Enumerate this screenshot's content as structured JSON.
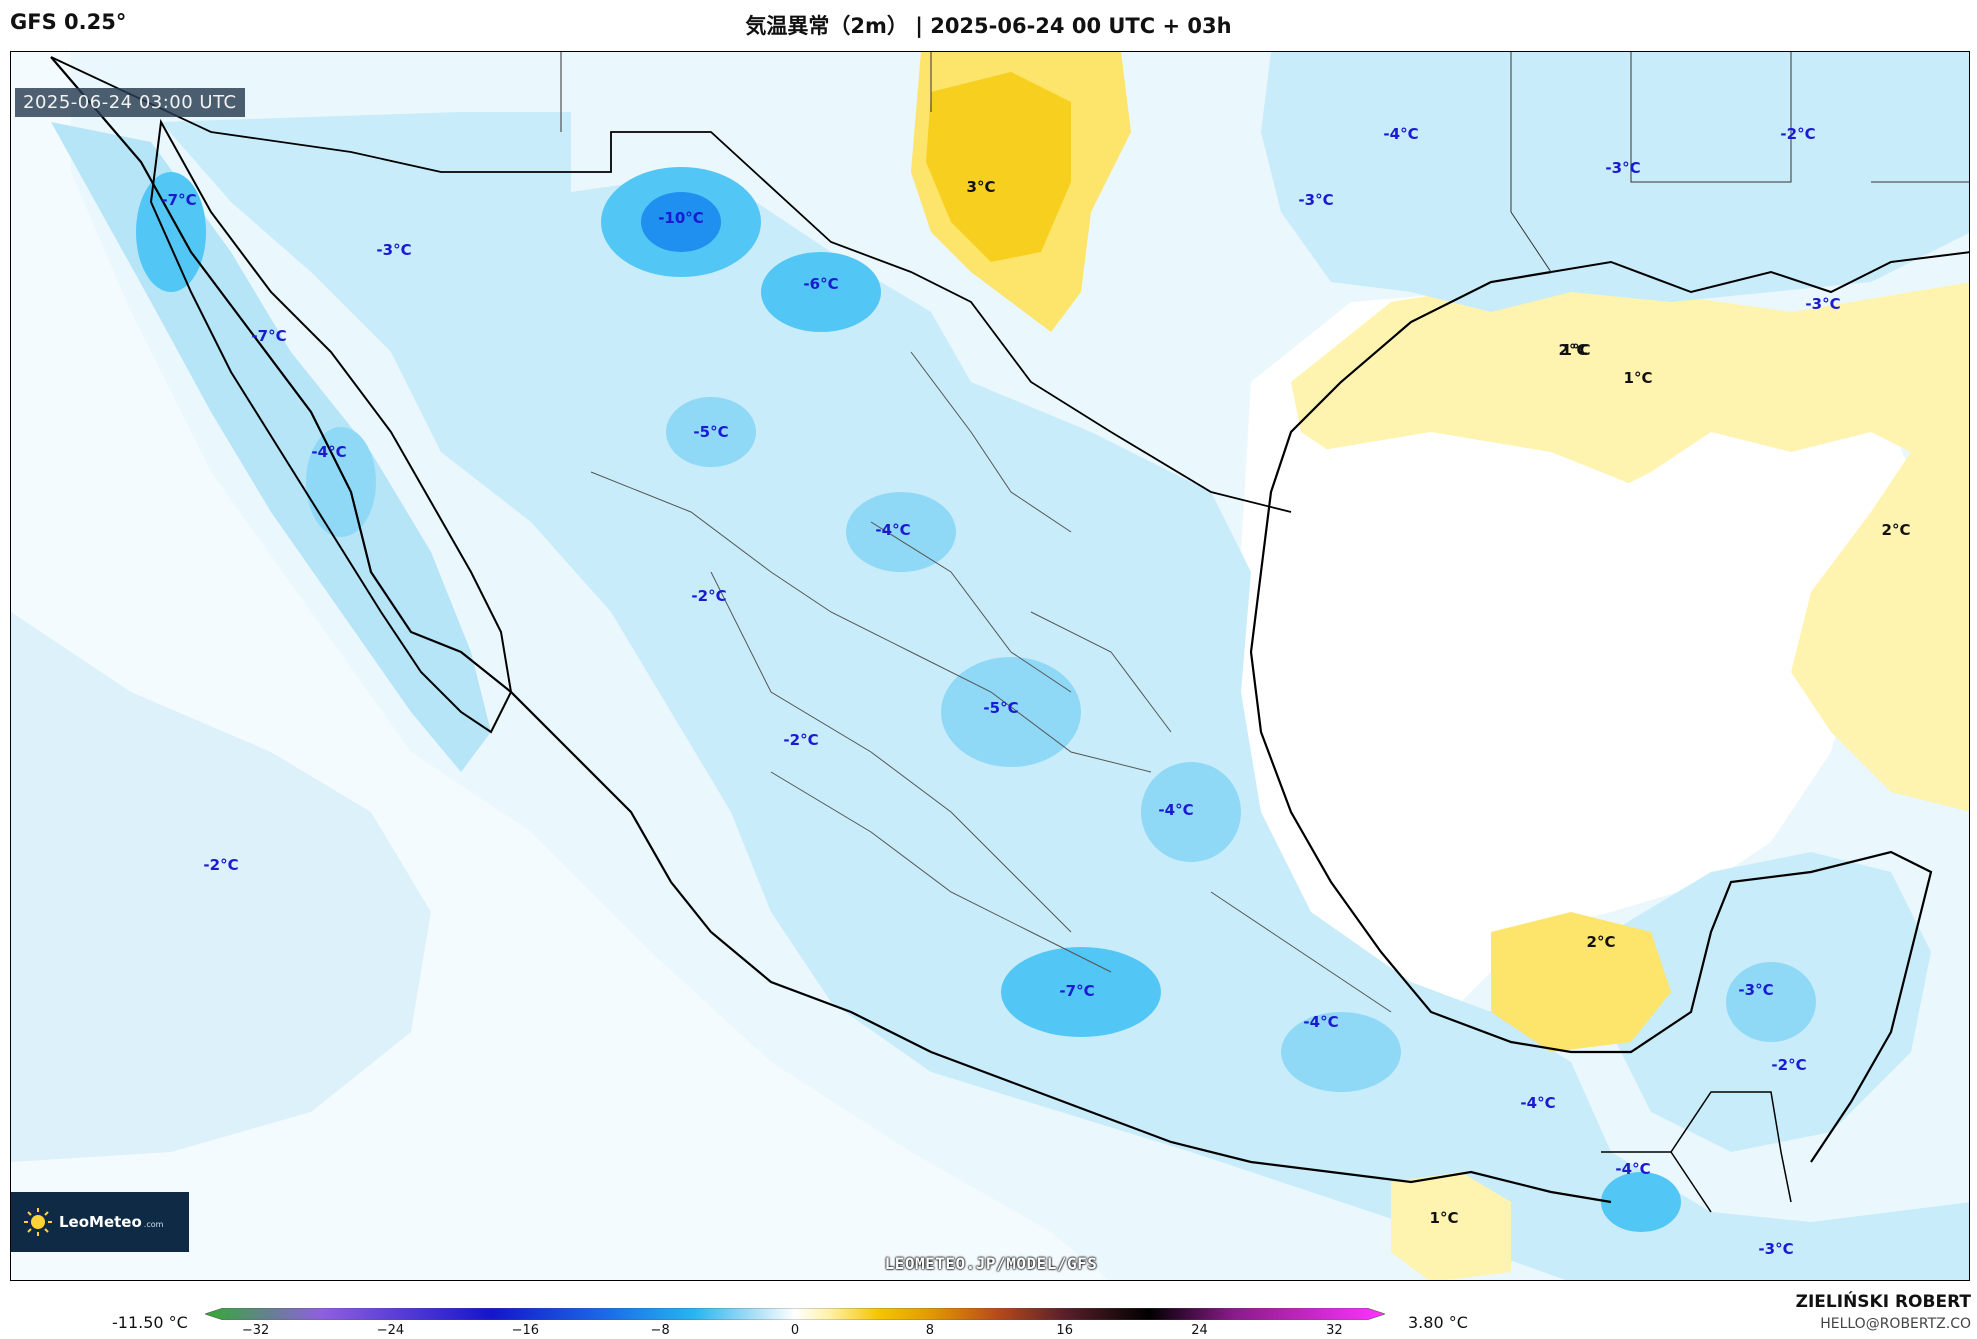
{
  "header": {
    "model": "GFS 0.25°",
    "title": "気温異常（2m） | 2025-06-24 00 UTC + 03h"
  },
  "map": {
    "timestamp": "2025-06-24 03:00 UTC",
    "watermark": "LEOMETEO.JP/MODEL/GFS",
    "logo": {
      "brand": "LeoMeteo",
      "suffix": ".com",
      "icon": "sun-icon"
    },
    "labels": [
      {
        "text": "-7°C",
        "sign": "neg"
      },
      {
        "text": "-7°C",
        "sign": "neg"
      },
      {
        "text": "-3°C",
        "sign": "neg"
      },
      {
        "text": "-4°C",
        "sign": "neg"
      },
      {
        "text": "-10°C",
        "sign": "neg"
      },
      {
        "text": "-6°C",
        "sign": "neg"
      },
      {
        "text": "-5°C",
        "sign": "neg"
      },
      {
        "text": "3°C",
        "sign": "pos"
      },
      {
        "text": "-4°C",
        "sign": "neg"
      },
      {
        "text": "-3°C",
        "sign": "neg"
      },
      {
        "text": "-3°C",
        "sign": "neg"
      },
      {
        "text": "-2°C",
        "sign": "neg"
      },
      {
        "text": "-3°C",
        "sign": "neg"
      },
      {
        "text": "2°C",
        "sign": "pos"
      },
      {
        "text": "1°C",
        "sign": "pos"
      },
      {
        "text": "1°C",
        "sign": "pos"
      },
      {
        "text": "2°C",
        "sign": "pos"
      },
      {
        "text": "-4°C",
        "sign": "neg"
      },
      {
        "text": "-2°C",
        "sign": "neg"
      },
      {
        "text": "-5°C",
        "sign": "neg"
      },
      {
        "text": "-2°C",
        "sign": "neg"
      },
      {
        "text": "-4°C",
        "sign": "neg"
      },
      {
        "text": "-2°C",
        "sign": "neg"
      },
      {
        "text": "-7°C",
        "sign": "neg"
      },
      {
        "text": "-4°C",
        "sign": "neg"
      },
      {
        "text": "2°C",
        "sign": "pos"
      },
      {
        "text": "-3°C",
        "sign": "neg"
      },
      {
        "text": "-2°C",
        "sign": "neg"
      },
      {
        "text": "-4°C",
        "sign": "neg"
      },
      {
        "text": "-4°C",
        "sign": "neg"
      },
      {
        "text": "1°C",
        "sign": "pos"
      },
      {
        "text": "1°C",
        "sign": "pos"
      },
      {
        "text": "-3°C",
        "sign": "neg"
      }
    ]
  },
  "colorbar": {
    "min_label": "-11.50 °C",
    "max_label": "3.80 °C",
    "ticks": [
      "−32",
      "−24",
      "−16",
      "−8",
      "0",
      "8",
      "16",
      "24",
      "32"
    ],
    "range": [
      -35,
      35
    ],
    "stops": [
      {
        "v": -35,
        "c": "#33aa33"
      },
      {
        "v": -28,
        "c": "#8f5ee0"
      },
      {
        "v": -18,
        "c": "#1515cc"
      },
      {
        "v": -11,
        "c": "#1a6ee8"
      },
      {
        "v": -6,
        "c": "#26b5f0"
      },
      {
        "v": -2,
        "c": "#b8e4f8"
      },
      {
        "v": 0,
        "c": "#ffffff"
      },
      {
        "v": 2,
        "c": "#fff2a8"
      },
      {
        "v": 5,
        "c": "#f5c400"
      },
      {
        "v": 8,
        "c": "#e39a00"
      },
      {
        "v": 12,
        "c": "#b84a1a"
      },
      {
        "v": 16,
        "c": "#5a1f2a"
      },
      {
        "v": 21,
        "c": "#000000"
      },
      {
        "v": 26,
        "c": "#8a1a8a"
      },
      {
        "v": 35,
        "c": "#ff33ff"
      }
    ]
  },
  "footer": {
    "author": "ZIELIŃSKI ROBERT",
    "email": "HELLO@ROBERTZ.CO"
  }
}
